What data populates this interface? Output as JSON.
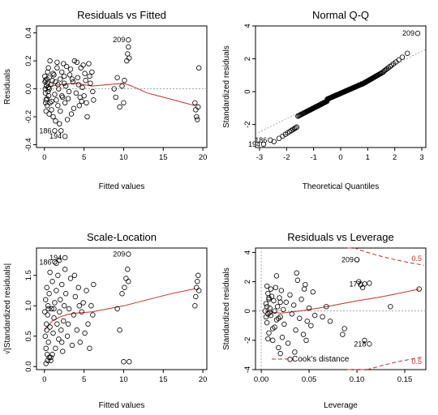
{
  "colors": {
    "smooth": "#c0302b",
    "points": "#000000",
    "reference": "#999999",
    "cook": "#c0302b"
  },
  "chart_data": [
    {
      "id": "rvf",
      "type": "scatter",
      "title": "Residuals vs Fitted",
      "xlabel": "Fitted values",
      "ylabel": "Residuals",
      "xlim": [
        -1,
        20.5
      ],
      "ylim": [
        -0.42,
        0.45
      ],
      "xticks": [
        0,
        5,
        10,
        15,
        20
      ],
      "yticks": [
        -0.4,
        -0.2,
        0.0,
        0.2,
        0.4
      ],
      "ytick_labels": [
        "-0.4",
        "-0.2",
        "0.0",
        "0.2",
        "0.4"
      ],
      "reference_line": 0,
      "points": [
        [
          0.05,
          0.09
        ],
        [
          0.08,
          0.05
        ],
        [
          0.1,
          0.0
        ],
        [
          0.12,
          -0.03
        ],
        [
          0.15,
          0.06
        ],
        [
          0.2,
          -0.08
        ],
        [
          0.25,
          0.02
        ],
        [
          0.3,
          0.07
        ],
        [
          0.35,
          -0.12
        ],
        [
          0.4,
          0.04
        ],
        [
          0.45,
          -0.02
        ],
        [
          0.5,
          0.01
        ],
        [
          0.55,
          -0.05
        ],
        [
          0.6,
          0.08
        ],
        [
          0.7,
          -0.1
        ],
        [
          0.8,
          0.03
        ],
        [
          0.9,
          -0.15
        ],
        [
          1.0,
          0.06
        ],
        [
          1.1,
          -0.2
        ],
        [
          1.2,
          0.1
        ],
        [
          1.3,
          -0.04
        ],
        [
          1.4,
          0.05
        ],
        [
          1.5,
          -0.08
        ],
        [
          1.6,
          0.15
        ],
        [
          1.7,
          -0.12
        ],
        [
          1.8,
          0.0
        ],
        [
          1.9,
          -0.25
        ],
        [
          2.0,
          0.07
        ],
        [
          2.1,
          -0.3
        ],
        [
          2.2,
          0.12
        ],
        [
          2.3,
          -0.06
        ],
        [
          2.5,
          0.04
        ],
        [
          2.6,
          -0.1
        ],
        [
          2.7,
          0.02
        ],
        [
          2.8,
          0.16
        ],
        [
          3.0,
          -0.07
        ],
        [
          3.2,
          0.1
        ],
        [
          3.4,
          -0.18
        ],
        [
          3.6,
          0.05
        ],
        [
          3.8,
          0.2
        ],
        [
          4.0,
          -0.03
        ],
        [
          4.2,
          0.08
        ],
        [
          4.4,
          -0.12
        ],
        [
          4.6,
          0.15
        ],
        [
          4.8,
          0.01
        ],
        [
          5.0,
          -0.05
        ],
        [
          5.2,
          0.06
        ],
        [
          5.4,
          -0.2
        ],
        [
          5.6,
          0.18
        ],
        [
          5.8,
          0.04
        ],
        [
          6.0,
          0.12
        ],
        [
          6.2,
          -0.08
        ],
        [
          2.4,
          0.18
        ],
        [
          2.9,
          -0.22
        ],
        [
          3.3,
          0.14
        ],
        [
          3.7,
          -0.14
        ],
        [
          4.1,
          0.19
        ],
        [
          4.5,
          -0.06
        ],
        [
          4.9,
          0.17
        ],
        [
          5.3,
          -0.1
        ],
        [
          5.7,
          0.09
        ],
        [
          1.6,
          0.19
        ],
        [
          2.0,
          -0.16
        ],
        [
          0.6,
          -0.18
        ],
        [
          0.4,
          0.12
        ],
        [
          0.3,
          -0.07
        ],
        [
          8.8,
          0.0
        ],
        [
          9.0,
          -0.06
        ],
        [
          9.2,
          0.08
        ],
        [
          9.5,
          -0.13
        ],
        [
          9.8,
          0.02
        ],
        [
          10.0,
          -0.1
        ],
        [
          10.1,
          0.06
        ],
        [
          10.4,
          0.2
        ],
        [
          10.5,
          0.25
        ],
        [
          10.6,
          0.3
        ],
        [
          10.7,
          0.22
        ],
        [
          19.0,
          -0.1
        ],
        [
          19.1,
          -0.15
        ],
        [
          19.2,
          -0.2
        ],
        [
          19.3,
          -0.22
        ],
        [
          19.4,
          -0.13
        ],
        [
          19.5,
          0.15
        ],
        [
          0.7,
          0.2
        ],
        [
          1.4,
          -0.23
        ],
        [
          2.2,
          -0.05
        ],
        [
          3.1,
          -0.02
        ],
        [
          0.2,
          -0.16
        ],
        [
          0.5,
          0.15
        ],
        [
          1.1,
          0.11
        ],
        [
          2.5,
          0.09
        ],
        [
          4.3,
          0.03
        ],
        [
          5.1,
          0.11
        ],
        [
          6.1,
          -0.02
        ],
        [
          0.9,
          -0.09
        ],
        [
          1.7,
          0.03
        ],
        [
          3.5,
          0.07
        ],
        [
          4.7,
          -0.09
        ],
        [
          0.15,
          -0.1
        ],
        [
          0.6,
          0.0
        ]
      ],
      "labeled_points": [
        {
          "label": "209",
          "x": 10.6,
          "y": 0.35
        },
        {
          "label": "186",
          "x": 1.3,
          "y": -0.3
        },
        {
          "label": "194",
          "x": 2.6,
          "y": -0.34
        }
      ],
      "smooth": [
        [
          0,
          0.01
        ],
        [
          2,
          0.03
        ],
        [
          4,
          0.04
        ],
        [
          6,
          0.02
        ],
        [
          8,
          0.03
        ],
        [
          10,
          0.04
        ],
        [
          11,
          0.02
        ],
        [
          13,
          -0.03
        ],
        [
          15,
          -0.06
        ],
        [
          17,
          -0.09
        ],
        [
          19,
          -0.12
        ]
      ]
    },
    {
      "id": "qq",
      "type": "scatter",
      "title": "Normal Q-Q",
      "xlabel": "Theoretical Quantiles",
      "ylabel": "Standardized residuals",
      "xlim": [
        -3.15,
        3.15
      ],
      "ylim": [
        -3.4,
        4.0
      ],
      "xticks": [
        -3,
        -2,
        -1,
        0,
        1,
        2,
        3
      ],
      "yticks": [
        -2,
        0,
        2,
        4
      ],
      "ytick_labels": [
        "-2",
        "0",
        "2",
        "4"
      ],
      "reference_slope": 0.82,
      "labeled_points": [
        {
          "label": "209",
          "x": 2.85,
          "y": 3.55
        },
        {
          "label": "186",
          "x": -2.6,
          "y": -2.95
        },
        {
          "label": "194",
          "x": -2.85,
          "y": -3.2
        }
      ],
      "n_points": 220
    },
    {
      "id": "sl",
      "type": "scatter",
      "title": "Scale-Location",
      "xlabel": "Fitted values",
      "ylabel": "√|Standardized residuals|",
      "xlim": [
        -1,
        20.5
      ],
      "ylim": [
        -0.05,
        1.95
      ],
      "xticks": [
        0,
        5,
        10,
        15,
        20
      ],
      "yticks": [
        0.0,
        0.5,
        1.0,
        1.5
      ],
      "ytick_labels": [
        "0.0",
        "0.5",
        "1.0",
        "1.5"
      ],
      "points": [
        [
          0.05,
          0.9
        ],
        [
          0.1,
          0.5
        ],
        [
          0.15,
          1.1
        ],
        [
          0.2,
          0.3
        ],
        [
          0.25,
          0.7
        ],
        [
          0.3,
          1.3
        ],
        [
          0.35,
          0.2
        ],
        [
          0.4,
          0.85
        ],
        [
          0.45,
          1.0
        ],
        [
          0.5,
          0.4
        ],
        [
          0.6,
          1.2
        ],
        [
          0.7,
          0.65
        ],
        [
          0.8,
          0.15
        ],
        [
          0.9,
          0.95
        ],
        [
          1.0,
          1.4
        ],
        [
          1.1,
          0.55
        ],
        [
          1.2,
          0.8
        ],
        [
          1.3,
          1.05
        ],
        [
          1.4,
          0.3
        ],
        [
          1.5,
          1.25
        ],
        [
          1.6,
          0.7
        ],
        [
          1.7,
          1.5
        ],
        [
          1.8,
          0.45
        ],
        [
          1.9,
          0.9
        ],
        [
          2.0,
          1.1
        ],
        [
          2.1,
          0.6
        ],
        [
          2.2,
          1.35
        ],
        [
          2.3,
          0.25
        ],
        [
          2.4,
          0.75
        ],
        [
          2.5,
          1.0
        ],
        [
          2.7,
          1.2
        ],
        [
          2.9,
          0.5
        ],
        [
          3.1,
          0.95
        ],
        [
          3.3,
          1.45
        ],
        [
          3.5,
          0.35
        ],
        [
          3.7,
          0.85
        ],
        [
          3.9,
          1.15
        ],
        [
          4.1,
          0.6
        ],
        [
          4.3,
          1.3
        ],
        [
          4.5,
          0.4
        ],
        [
          4.7,
          0.9
        ],
        [
          4.9,
          1.05
        ],
        [
          5.1,
          0.55
        ],
        [
          5.3,
          1.25
        ],
        [
          5.5,
          0.7
        ],
        [
          5.7,
          0.3
        ],
        [
          5.9,
          1.0
        ],
        [
          6.1,
          0.85
        ],
        [
          6.2,
          1.35
        ],
        [
          1.5,
          1.7
        ],
        [
          2.6,
          1.6
        ],
        [
          1.9,
          1.75
        ],
        [
          0.7,
          1.55
        ],
        [
          3.8,
          1.5
        ],
        [
          0.3,
          0.6
        ],
        [
          0.5,
          0.95
        ],
        [
          1.0,
          0.2
        ],
        [
          2.2,
          0.4
        ],
        [
          3.0,
          0.7
        ],
        [
          4.4,
          1.0
        ],
        [
          9.2,
          0.95
        ],
        [
          9.5,
          0.6
        ],
        [
          9.8,
          1.2
        ],
        [
          10.0,
          0.08
        ],
        [
          10.1,
          1.3
        ],
        [
          10.3,
          1.45
        ],
        [
          10.5,
          1.6
        ],
        [
          10.6,
          1.4
        ],
        [
          10.7,
          0.08
        ],
        [
          19.0,
          1.0
        ],
        [
          19.1,
          1.15
        ],
        [
          19.2,
          1.3
        ],
        [
          19.3,
          1.4
        ],
        [
          19.4,
          1.5
        ],
        [
          19.5,
          1.25
        ],
        [
          0.2,
          0.05
        ],
        [
          0.4,
          0.1
        ],
        [
          0.6,
          0.15
        ],
        [
          0.8,
          0.1
        ],
        [
          1.2,
          0.95
        ]
      ],
      "labeled_points": [
        {
          "label": "209",
          "x": 10.6,
          "y": 1.85
        },
        {
          "label": "186",
          "x": 1.3,
          "y": 1.72
        },
        {
          "label": "194",
          "x": 2.6,
          "y": 1.79
        }
      ],
      "smooth": [
        [
          0,
          0.6
        ],
        [
          1,
          0.75
        ],
        [
          2,
          0.82
        ],
        [
          3,
          0.86
        ],
        [
          4,
          0.88
        ],
        [
          6,
          0.9
        ],
        [
          8,
          0.95
        ],
        [
          10,
          1.0
        ],
        [
          13,
          1.1
        ],
        [
          16,
          1.2
        ],
        [
          19,
          1.28
        ]
      ]
    },
    {
      "id": "rvl",
      "type": "scatter",
      "title": "Residuals vs Leverage",
      "xlabel": "Leverage",
      "ylabel": "Standardized residuals",
      "xlim": [
        -0.006,
        0.172
      ],
      "ylim": [
        -4.0,
        4.3
      ],
      "xticks": [
        0.0,
        0.05,
        0.1,
        0.15
      ],
      "xtick_labels": [
        "0.00",
        "0.05",
        "0.10",
        "0.15"
      ],
      "yticks": [
        -4,
        -2,
        0,
        2,
        4
      ],
      "ytick_labels": [
        "-4",
        "-2",
        "0",
        "2",
        "4"
      ],
      "points": [
        [
          0.005,
          0.5
        ],
        [
          0.006,
          -0.8
        ],
        [
          0.007,
          1.2
        ],
        [
          0.008,
          -1.5
        ],
        [
          0.009,
          0.2
        ],
        [
          0.01,
          -0.3
        ],
        [
          0.011,
          1.0
        ],
        [
          0.012,
          -2.0
        ],
        [
          0.013,
          0.7
        ],
        [
          0.014,
          -1.1
        ],
        [
          0.015,
          1.6
        ],
        [
          0.016,
          -0.6
        ],
        [
          0.017,
          0.3
        ],
        [
          0.018,
          -2.5
        ],
        [
          0.019,
          0.9
        ],
        [
          0.02,
          -0.4
        ],
        [
          0.021,
          1.4
        ],
        [
          0.022,
          -1.8
        ],
        [
          0.023,
          0.1
        ],
        [
          0.024,
          -0.9
        ],
        [
          0.026,
          0.6
        ],
        [
          0.028,
          -2.2
        ],
        [
          0.03,
          1.1
        ],
        [
          0.032,
          -0.2
        ],
        [
          0.034,
          0.4
        ],
        [
          0.036,
          -1.3
        ],
        [
          0.038,
          2.1
        ],
        [
          0.04,
          -0.5
        ],
        [
          0.042,
          0.8
        ],
        [
          0.044,
          -1.6
        ],
        [
          0.046,
          1.8
        ],
        [
          0.048,
          -0.7
        ],
        [
          0.05,
          0.2
        ],
        [
          0.052,
          -1.0
        ],
        [
          0.054,
          1.3
        ],
        [
          0.056,
          -0.3
        ],
        [
          0.006,
          1.7
        ],
        [
          0.007,
          -1.9
        ],
        [
          0.008,
          0.9
        ],
        [
          0.009,
          -0.1
        ],
        [
          0.01,
          1.5
        ],
        [
          0.012,
          -1.2
        ],
        [
          0.014,
          0.0
        ],
        [
          0.016,
          2.4
        ],
        [
          0.018,
          -0.5
        ],
        [
          0.02,
          0.6
        ],
        [
          0.035,
          -2.8
        ],
        [
          0.037,
          2.6
        ],
        [
          0.045,
          1.5
        ],
        [
          0.047,
          -2.0
        ],
        [
          0.064,
          -0.4
        ],
        [
          0.068,
          0.3
        ],
        [
          0.072,
          -0.7
        ],
        [
          0.085,
          -1.6
        ],
        [
          0.087,
          -1.2
        ],
        [
          0.1,
          3.5
        ],
        [
          0.102,
          2.0
        ],
        [
          0.104,
          1.8
        ],
        [
          0.106,
          1.6
        ],
        [
          0.108,
          -2.0
        ],
        [
          0.113,
          1.9
        ],
        [
          0.135,
          0.3
        ],
        [
          0.165,
          1.5
        ],
        [
          0.02,
          -2.9
        ],
        [
          0.03,
          -3.3
        ],
        [
          0.004,
          0.0
        ],
        [
          0.005,
          -0.4
        ],
        [
          0.006,
          0.3
        ],
        [
          0.007,
          -0.2
        ],
        [
          0.008,
          0.8
        ]
      ],
      "labeled_points": [
        {
          "label": "209",
          "x": 0.1,
          "y": 3.5
        },
        {
          "label": "177",
          "x": 0.108,
          "y": 1.85
        },
        {
          "label": "218",
          "x": 0.113,
          "y": -2.25
        }
      ],
      "smooth": [
        [
          0.004,
          0.0
        ],
        [
          0.02,
          -0.15
        ],
        [
          0.04,
          0.0
        ],
        [
          0.06,
          0.2
        ],
        [
          0.08,
          0.45
        ],
        [
          0.1,
          0.7
        ],
        [
          0.12,
          0.9
        ],
        [
          0.14,
          1.15
        ],
        [
          0.165,
          1.5
        ]
      ],
      "cook_label": "0.5",
      "legend": "Cook's distance"
    }
  ]
}
